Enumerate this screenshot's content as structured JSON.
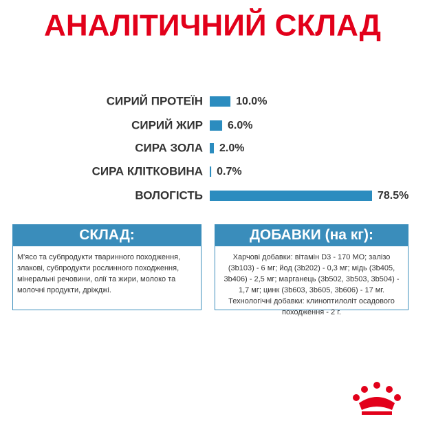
{
  "chart_data": {
    "type": "bar",
    "orientation": "horizontal",
    "title": "АНАЛІТИЧНИЙ СКЛАД",
    "categories": [
      "СИРИЙ ПРОТЕЇН",
      "СИРИЙ ЖИР",
      "СИРА ЗОЛА",
      "СИРА КЛІТКОВИНА",
      "ВОЛОГІСТЬ"
    ],
    "values": [
      10.0,
      6.0,
      2.0,
      0.7,
      78.5
    ],
    "value_labels": [
      "10.0%",
      "6.0%",
      "2.0%",
      "0.7%",
      "78.5%"
    ],
    "color": "#2b8cbf"
  },
  "composition": {
    "title": "СКЛАД:",
    "text": "М'ясо та субпродукти тваринного походження, злакові, субпродукти рослинного походження, мінеральні речовини, олії та жири, молоко та молочні продукти, дріжджі."
  },
  "additives": {
    "title": "ДОБАВКИ (на кг):",
    "text": "Харчові добавки: вітамін D3 - 170 МО; залізо (3b103) - 6 мг; йод (3b202) - 0,3 мг; мідь (3b405, 3b406) - 2,5 мг; марганець (3b502, 3b503, 3b504) - 1,7 мг; цинк (3b603, 3b605, 3b606) - 17 мг. Технологічні добавки: клиноптилоліт осадового походження - 2 г."
  }
}
